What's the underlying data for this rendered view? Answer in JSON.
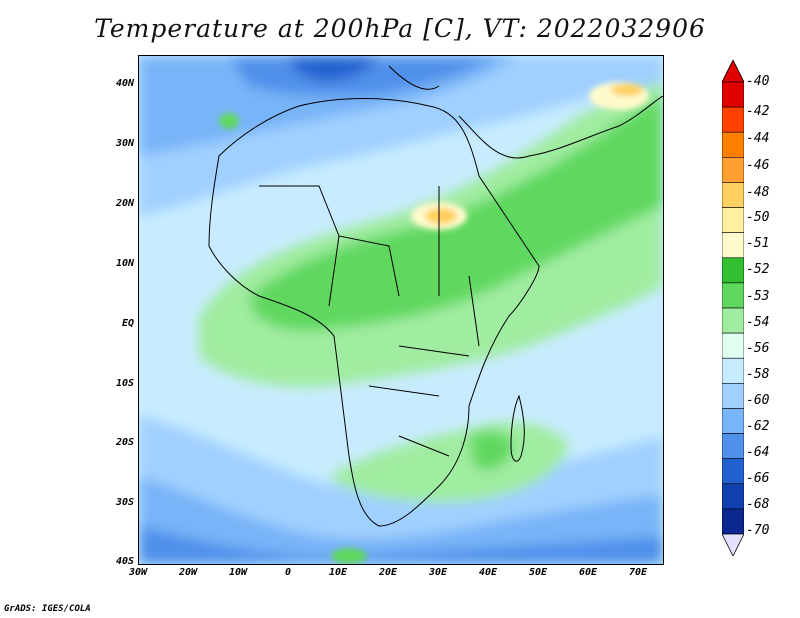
{
  "title": "Temperature at 200hPa [C], VT: 2022032906",
  "credit": "GrADS: IGES/COLA",
  "lat_labels": [
    "40N",
    "30N",
    "20N",
    "10N",
    "EQ",
    "10S",
    "20S",
    "30S",
    "40S"
  ],
  "lon_labels": [
    "30W",
    "20W",
    "10W",
    "0",
    "10E",
    "20E",
    "30E",
    "40E",
    "50E",
    "60E",
    "70E"
  ],
  "colorbar": {
    "labels": [
      "-40",
      "-42",
      "-44",
      "-46",
      "-48",
      "-50",
      "-51",
      "-52",
      "-53",
      "-54",
      "-56",
      "-58",
      "-60",
      "-62",
      "-64",
      "-66",
      "-68",
      "-70"
    ],
    "colors": [
      "#a00000",
      "#e00000",
      "#ff4000",
      "#ff8000",
      "#ffa030",
      "#ffd060",
      "#fff0a0",
      "#fffacc",
      "#30c030",
      "#60d860",
      "#a0eca0",
      "#e0fff0",
      "#c8ecff",
      "#a0d0ff",
      "#78b4f8",
      "#5090ea",
      "#2060d0",
      "#1040b0",
      "#0a2890",
      "#000070"
    ],
    "top_arrow_color": "#e00000",
    "bottom_arrow_color": "#e8e0ff"
  },
  "map": {
    "background_color": "#c8ecff"
  }
}
